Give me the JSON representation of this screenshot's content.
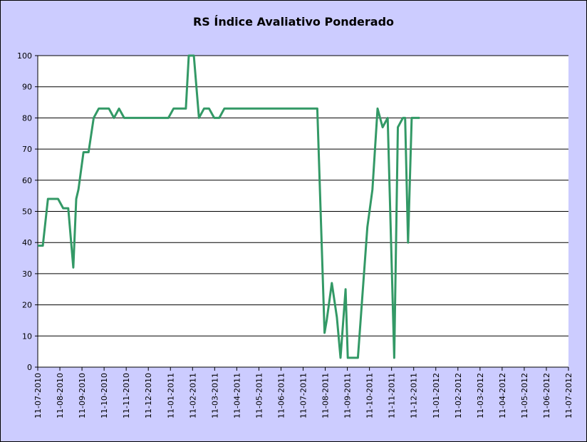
{
  "chart_data": {
    "type": "line",
    "title": "RS Índice Avaliativo Ponderado",
    "xlabel": "",
    "ylabel": "",
    "ylim": [
      0,
      100
    ],
    "yticks": [
      0,
      10,
      20,
      30,
      40,
      50,
      60,
      70,
      80,
      90,
      100
    ],
    "xlim": [
      "2010-07-11",
      "2012-07-11"
    ],
    "xtick_labels": [
      "11-07-2010",
      "11-08-2010",
      "11-09-2010",
      "11-10-2010",
      "11-11-2010",
      "11-12-2010",
      "11-01-2011",
      "11-02-2011",
      "11-03-2011",
      "11-04-2011",
      "11-05-2011",
      "11-06-2011",
      "11-07-2011",
      "11-08-2011",
      "11-09-2011",
      "11-10-2011",
      "11-11-2011",
      "11-12-2011",
      "11-01-2012",
      "11-02-2012",
      "11-03-2012",
      "11-04-2012",
      "11-05-2012",
      "11-06-2012",
      "11-07-2012"
    ],
    "grid": "horizontal",
    "legend": "none",
    "colors": {
      "background": "#ccccff",
      "plot_area": "#ffffff",
      "line": "#339966",
      "grid": "#000000"
    },
    "series": [
      {
        "x": [
          "2010-07-11",
          "2010-07-18",
          "2010-07-25",
          "2010-08-01",
          "2010-08-08",
          "2010-08-15",
          "2010-08-22",
          "2010-08-29",
          "2010-09-02",
          "2010-09-05",
          "2010-09-12",
          "2010-09-19",
          "2010-09-26",
          "2010-10-03",
          "2010-10-10",
          "2010-10-17",
          "2010-10-24",
          "2010-10-31",
          "2010-11-07",
          "2010-11-14",
          "2010-11-21",
          "2010-11-28",
          "2010-12-31",
          "2011-01-07",
          "2011-01-14",
          "2011-01-21",
          "2011-01-31",
          "2011-02-04",
          "2011-02-11",
          "2011-02-18",
          "2011-02-25",
          "2011-03-04",
          "2011-03-11",
          "2011-03-18",
          "2011-03-25",
          "2011-04-01",
          "2011-07-31",
          "2011-08-10",
          "2011-08-13",
          "2011-08-20",
          "2011-08-27",
          "2011-09-01",
          "2011-09-08",
          "2011-09-11",
          "2011-09-18",
          "2011-09-25",
          "2011-10-08",
          "2011-10-15",
          "2011-10-22",
          "2011-10-29",
          "2011-11-05",
          "2011-11-14",
          "2011-11-19",
          "2011-11-26",
          "2011-11-29",
          "2011-12-03",
          "2011-12-08",
          "2011-12-15",
          "2011-12-19"
        ],
        "values": [
          39,
          39,
          54,
          54,
          54,
          51,
          51,
          32,
          54,
          57,
          69,
          69,
          80,
          83,
          83,
          83,
          80,
          83,
          80,
          80,
          80,
          80,
          80,
          80,
          83,
          83,
          83,
          100,
          100,
          80,
          83,
          83,
          80,
          80,
          83,
          83,
          83,
          11,
          15,
          27,
          16,
          3,
          25,
          3,
          3,
          3,
          45,
          57,
          83,
          77,
          80,
          3,
          77,
          80,
          80,
          40,
          80,
          80,
          80
        ]
      }
    ]
  }
}
